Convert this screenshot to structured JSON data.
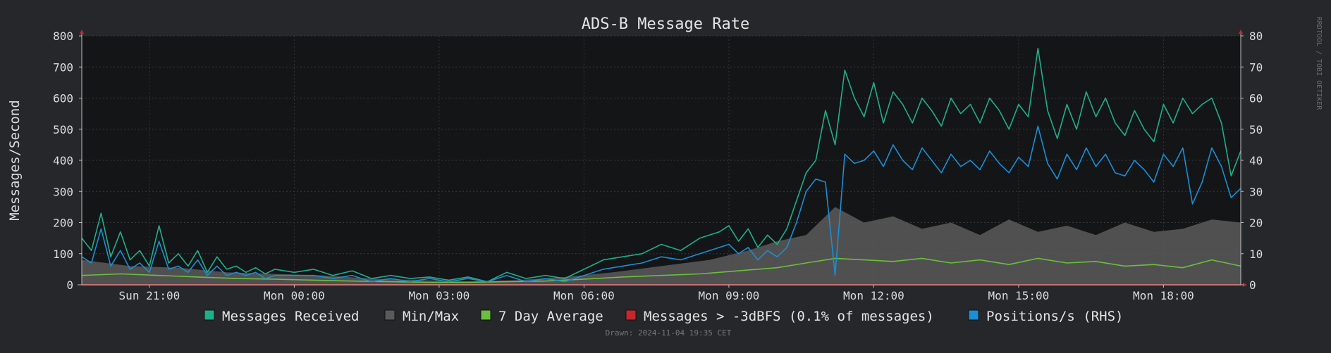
{
  "chart_data": {
    "type": "line",
    "title": "ADS-B Message Rate",
    "ylabel": "Messages/Second",
    "ylim": [
      0,
      800
    ],
    "y2lim": [
      0,
      80
    ],
    "y_ticks": [
      0,
      100,
      200,
      300,
      400,
      500,
      600,
      700,
      800
    ],
    "y2_ticks": [
      0,
      10,
      20,
      30,
      40,
      50,
      60,
      70,
      80
    ],
    "x_start_hour": 19.6,
    "x_end_hour": 43.6,
    "x_ticks": [
      {
        "hour": 21,
        "label": "Sun 21:00"
      },
      {
        "hour": 24,
        "label": "Mon 00:00"
      },
      {
        "hour": 27,
        "label": "Mon 03:00"
      },
      {
        "hour": 30,
        "label": "Mon 06:00"
      },
      {
        "hour": 33,
        "label": "Mon 09:00"
      },
      {
        "hour": 36,
        "label": "Mon 12:00"
      },
      {
        "hour": 39,
        "label": "Mon 15:00"
      },
      {
        "hour": 42,
        "label": "Mon 18:00"
      }
    ],
    "grid": true,
    "legend_position": "bottom",
    "side_text": "RRDTOOL / TOBI OETIKER",
    "footer": "Drawn: 2024-11-04 19:35 CET",
    "series": [
      {
        "name": "Messages Received",
        "color": "#1fae8a",
        "axis": "left",
        "x": [
          19.6,
          19.8,
          20.0,
          20.2,
          20.4,
          20.6,
          20.8,
          21.0,
          21.2,
          21.4,
          21.6,
          21.8,
          22.0,
          22.2,
          22.4,
          22.6,
          22.8,
          23.0,
          23.2,
          23.4,
          23.6,
          24.0,
          24.4,
          24.8,
          25.2,
          25.6,
          26.0,
          26.4,
          26.8,
          27.2,
          27.6,
          28.0,
          28.4,
          28.8,
          29.2,
          29.6,
          30.0,
          30.4,
          30.8,
          31.2,
          31.6,
          32.0,
          32.4,
          32.8,
          33.0,
          33.2,
          33.4,
          33.6,
          33.8,
          34.0,
          34.2,
          34.4,
          34.6,
          34.8,
          35.0,
          35.2,
          35.4,
          35.6,
          35.8,
          36.0,
          36.2,
          36.4,
          36.6,
          36.8,
          37.0,
          37.2,
          37.4,
          37.6,
          37.8,
          38.0,
          38.2,
          38.4,
          38.6,
          38.8,
          39.0,
          39.2,
          39.4,
          39.6,
          39.8,
          40.0,
          40.2,
          40.4,
          40.6,
          40.8,
          41.0,
          41.2,
          41.4,
          41.6,
          41.8,
          42.0,
          42.2,
          42.4,
          42.6,
          42.8,
          43.0,
          43.2,
          43.4,
          43.6
        ],
        "y": [
          150,
          110,
          230,
          90,
          170,
          80,
          110,
          60,
          190,
          70,
          100,
          60,
          110,
          40,
          90,
          50,
          60,
          40,
          55,
          35,
          50,
          40,
          50,
          30,
          45,
          20,
          30,
          20,
          25,
          15,
          25,
          10,
          40,
          20,
          30,
          20,
          50,
          80,
          90,
          100,
          130,
          110,
          150,
          170,
          190,
          140,
          180,
          120,
          160,
          130,
          180,
          270,
          360,
          400,
          560,
          450,
          690,
          600,
          540,
          650,
          520,
          620,
          580,
          520,
          600,
          560,
          510,
          600,
          550,
          580,
          520,
          600,
          560,
          500,
          580,
          540,
          760,
          560,
          470,
          580,
          500,
          620,
          540,
          600,
          520,
          480,
          560,
          500,
          460,
          580,
          520,
          600,
          550,
          580,
          600,
          520,
          350,
          430
        ]
      },
      {
        "name": "Positions/s (RHS)",
        "color": "#1b8ed6",
        "axis": "right",
        "x": [
          19.6,
          19.8,
          20.0,
          20.2,
          20.4,
          20.6,
          20.8,
          21.0,
          21.2,
          21.4,
          21.6,
          21.8,
          22.0,
          22.2,
          22.4,
          22.6,
          22.8,
          23.0,
          23.2,
          23.4,
          23.6,
          24.0,
          24.4,
          24.8,
          25.2,
          25.6,
          26.0,
          26.4,
          26.8,
          27.2,
          27.6,
          28.0,
          28.4,
          28.8,
          29.2,
          29.6,
          30.0,
          30.4,
          30.8,
          31.2,
          31.6,
          32.0,
          32.4,
          32.8,
          33.0,
          33.2,
          33.4,
          33.6,
          33.8,
          34.0,
          34.2,
          34.4,
          34.6,
          34.8,
          35.0,
          35.2,
          35.4,
          35.6,
          35.8,
          36.0,
          36.2,
          36.4,
          36.6,
          36.8,
          37.0,
          37.2,
          37.4,
          37.6,
          37.8,
          38.0,
          38.2,
          38.4,
          38.6,
          38.8,
          39.0,
          39.2,
          39.4,
          39.6,
          39.8,
          40.0,
          40.2,
          40.4,
          40.6,
          40.8,
          41.0,
          41.2,
          41.4,
          41.6,
          41.8,
          42.0,
          42.2,
          42.4,
          42.6,
          42.8,
          43.0,
          43.2,
          43.4,
          43.6
        ],
        "y": [
          9,
          7,
          18,
          6,
          11,
          5,
          7,
          4,
          14,
          5,
          6,
          4,
          8,
          3,
          6,
          3,
          4,
          3,
          4,
          2,
          3,
          3,
          3,
          2,
          3,
          1,
          2,
          1,
          2,
          1,
          2,
          1,
          3,
          1,
          2,
          1,
          3,
          5,
          6,
          7,
          9,
          8,
          10,
          12,
          13,
          10,
          12,
          8,
          11,
          9,
          12,
          20,
          30,
          34,
          33,
          3,
          42,
          39,
          40,
          43,
          38,
          45,
          40,
          37,
          44,
          40,
          36,
          42,
          38,
          40,
          37,
          43,
          39,
          36,
          41,
          38,
          51,
          39,
          34,
          42,
          37,
          44,
          38,
          42,
          36,
          35,
          40,
          37,
          33,
          42,
          38,
          44,
          26,
          33,
          44,
          38,
          28,
          31
        ]
      },
      {
        "name": "7 Day Average",
        "color": "#6abf3c",
        "axis": "left",
        "x": [
          19.6,
          20.4,
          21.2,
          22.0,
          22.8,
          23.6,
          24.4,
          25.2,
          26.0,
          26.8,
          27.6,
          28.4,
          29.2,
          30.0,
          30.8,
          31.6,
          32.4,
          33.2,
          34.0,
          34.6,
          35.2,
          35.8,
          36.4,
          37.0,
          37.6,
          38.2,
          38.8,
          39.4,
          40.0,
          40.6,
          41.2,
          41.8,
          42.4,
          43.0,
          43.6
        ],
        "y": [
          30,
          35,
          30,
          25,
          20,
          18,
          15,
          12,
          10,
          8,
          8,
          10,
          12,
          18,
          25,
          30,
          35,
          45,
          55,
          70,
          85,
          80,
          75,
          85,
          70,
          80,
          65,
          85,
          70,
          75,
          60,
          65,
          55,
          80,
          60
        ]
      },
      {
        "name": "Min/Max",
        "color": "#5a5a5a",
        "axis": "left",
        "x": [
          19.6,
          20.6,
          21.6,
          22.6,
          23.6,
          24.6,
          25.6,
          26.6,
          27.6,
          28.6,
          29.6,
          30.6,
          31.6,
          32.6,
          33.4,
          34.0,
          34.6,
          35.2,
          35.8,
          36.4,
          37.0,
          37.6,
          38.2,
          38.8,
          39.4,
          40.0,
          40.6,
          41.2,
          41.8,
          42.4,
          43.0,
          43.6
        ],
        "y": [
          80,
          60,
          55,
          40,
          35,
          30,
          20,
          15,
          12,
          15,
          25,
          40,
          60,
          80,
          110,
          140,
          160,
          250,
          200,
          220,
          180,
          200,
          160,
          210,
          170,
          190,
          160,
          200,
          170,
          180,
          210,
          200
        ]
      },
      {
        "name": "Messages > -3dBFS (0.1% of messages)",
        "color": "#c7272c",
        "axis": "left",
        "x": [
          19.6,
          43.6
        ],
        "y": [
          0,
          0
        ]
      }
    ]
  },
  "legend": [
    {
      "label": "Messages Received",
      "color": "#1fae8a"
    },
    {
      "label": "Min/Max",
      "color": "#5a5a5a"
    },
    {
      "label": "7 Day Average",
      "color": "#6abf3c"
    },
    {
      "label": "Messages > -3dBFS (0.1% of messages)",
      "color": "#c7272c"
    },
    {
      "label": "Positions/s (RHS)",
      "color": "#1b8ed6"
    }
  ]
}
